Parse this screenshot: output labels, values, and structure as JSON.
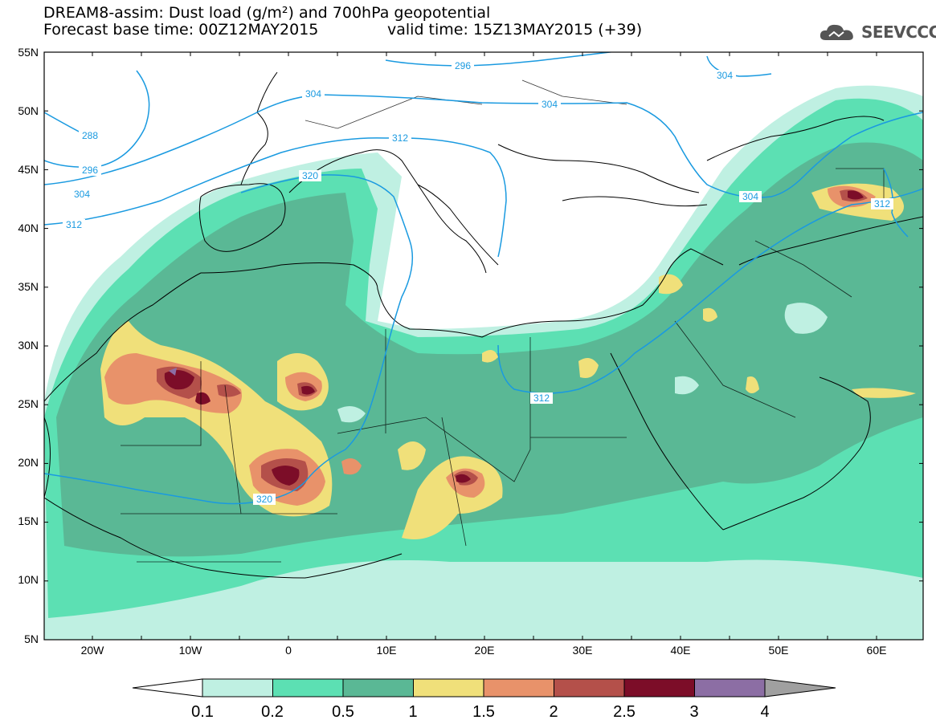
{
  "header": {
    "line1": "DREAM8-assim: Dust load (g/m²) and 700hPa geopotential",
    "line2_base": "Forecast base time: 00Z12MAY2015",
    "line2_valid": "valid time: 15Z13MAY2015 (+39)",
    "logo_text": "SEEVCCC"
  },
  "map": {
    "lat_labels": [
      "55N",
      "50N",
      "45N",
      "40N",
      "35N",
      "30N",
      "25N",
      "20N",
      "15N",
      "10N",
      "5N"
    ],
    "lon_labels": [
      "20W",
      "10W",
      "0",
      "10E",
      "20E",
      "30E",
      "40E",
      "50E",
      "60E"
    ],
    "contour_labels": [
      "296",
      "304",
      "304",
      "288",
      "296",
      "304",
      "312",
      "304",
      "312",
      "320",
      "312",
      "304",
      "312",
      "320"
    ]
  },
  "legend": {
    "ticks": [
      "0.1",
      "0.2",
      "0.5",
      "1",
      "1.5",
      "2",
      "2.5",
      "3",
      "4"
    ],
    "colors": [
      "#bff0e2",
      "#5ce0b3",
      "#5ab895",
      "#f0e07a",
      "#e8926a",
      "#b4504a",
      "#7c0d28",
      "#8c6ea4",
      "#a0a0a0"
    ]
  }
}
